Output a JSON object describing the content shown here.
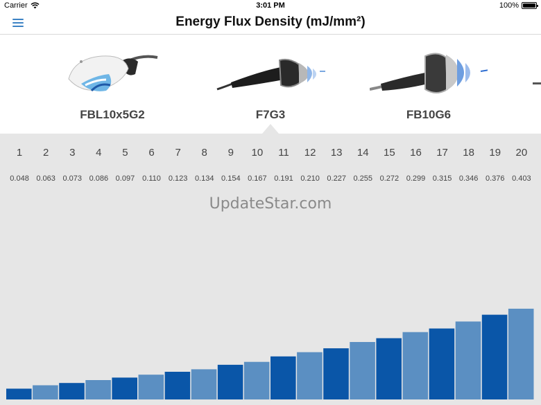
{
  "status_bar": {
    "carrier": "Carrier",
    "time": "3:01 PM",
    "battery": "100%"
  },
  "nav": {
    "title": "Energy Flux Density (mJ/mm²)"
  },
  "devices": [
    {
      "name": "FBL10x5G2",
      "selected": false
    },
    {
      "name": "F7G3",
      "selected": true
    },
    {
      "name": "FB10G6",
      "selected": false
    }
  ],
  "watermark": "UpdateStar.com",
  "colors": {
    "accent": "#3b82c4",
    "bar_dark": "#0a56a8",
    "bar_light": "#5b8fc2",
    "panel_bg": "#e6e6e6"
  },
  "chart_data": {
    "type": "bar",
    "categories": [
      "1",
      "2",
      "3",
      "4",
      "5",
      "6",
      "7",
      "8",
      "9",
      "10",
      "11",
      "12",
      "13",
      "14",
      "15",
      "16",
      "17",
      "18",
      "19",
      "20"
    ],
    "values": [
      0.048,
      0.063,
      0.073,
      0.086,
      0.097,
      0.11,
      0.123,
      0.134,
      0.154,
      0.167,
      0.191,
      0.21,
      0.227,
      0.255,
      0.272,
      0.299,
      0.315,
      0.346,
      0.376,
      0.403
    ],
    "value_labels": [
      "0.048",
      "0.063",
      "0.073",
      "0.086",
      "0.097",
      "0.110",
      "0.123",
      "0.134",
      "0.154",
      "0.167",
      "0.191",
      "0.210",
      "0.227",
      "0.255",
      "0.272",
      "0.299",
      "0.315",
      "0.346",
      "0.376",
      "0.403"
    ],
    "ylim": [
      0,
      1.18
    ],
    "grid": false
  }
}
